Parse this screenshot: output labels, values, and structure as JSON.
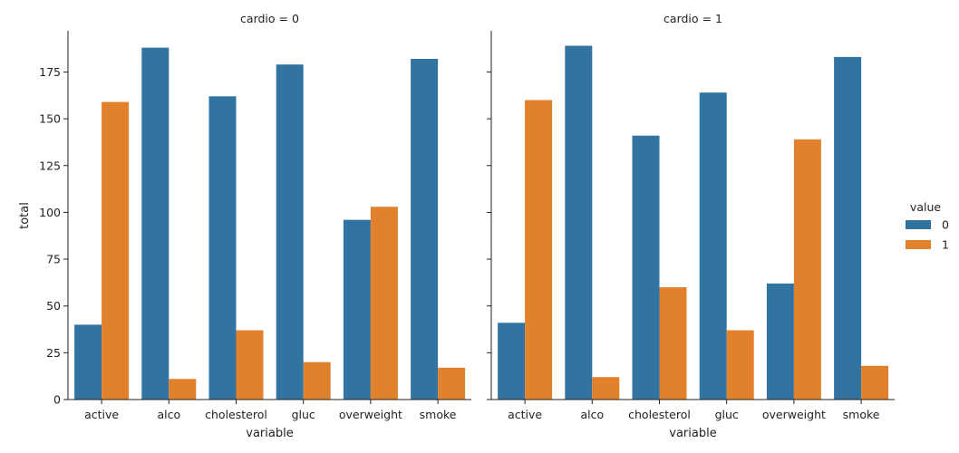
{
  "chart_data": {
    "type": "bar",
    "categories": [
      "active",
      "alco",
      "cholesterol",
      "gluc",
      "overweight",
      "smoke"
    ],
    "xlabel": "variable",
    "ylabel": "total",
    "ylim": [
      0,
      197
    ],
    "yticks": [
      0,
      25,
      50,
      75,
      100,
      125,
      150,
      175
    ],
    "grid": false,
    "legend": {
      "title": "value",
      "placement": "right",
      "entries": [
        {
          "label": "0",
          "color": "#3274a1"
        },
        {
          "label": "1",
          "color": "#e1812c"
        }
      ]
    },
    "facets": [
      {
        "title": "cardio = 0",
        "series": [
          {
            "name": "0",
            "color": "#3274a1",
            "values": [
              40,
              188,
              162,
              179,
              96,
              182
            ]
          },
          {
            "name": "1",
            "color": "#e1812c",
            "values": [
              159,
              11,
              37,
              20,
              103,
              17
            ]
          }
        ]
      },
      {
        "title": "cardio = 1",
        "series": [
          {
            "name": "0",
            "color": "#3274a1",
            "values": [
              41,
              189,
              141,
              164,
              62,
              183
            ]
          },
          {
            "name": "1",
            "color": "#e1812c",
            "values": [
              160,
              12,
              60,
              37,
              139,
              18
            ]
          }
        ]
      }
    ]
  }
}
